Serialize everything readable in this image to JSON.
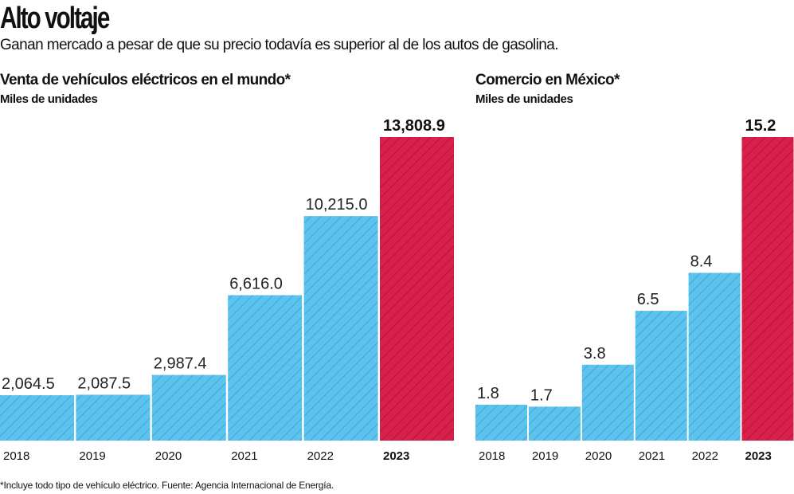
{
  "title": "Alto voltaje",
  "subtitle": "Ganan mercado a pesar de que su precio todavía es superior al de los autos de gasolina.",
  "footnote": "*Incluye todo tipo de vehículo eléctrico. Fuente: Agencia Internacional de Energía.",
  "colors": {
    "normal": "#5cc3ee",
    "highlight": "#d91f4b",
    "hatch_normal": "#3a8fbf",
    "hatch_highlight": "#9a1030"
  },
  "chart_data": [
    {
      "type": "bar",
      "title": "Venta de vehículos eléctricos en el mundo*",
      "ylabel": "Miles de unidades",
      "categories": [
        "2018",
        "2019",
        "2020",
        "2021",
        "2022",
        "2023"
      ],
      "values": [
        2064.5,
        2087.5,
        2987.4,
        6616.0,
        10215.0,
        13808.9
      ],
      "labels": [
        "2,064.5",
        "2,087.5",
        "2,987.4",
        "6,616.0",
        "10,215.0",
        "13,808.9"
      ],
      "highlight": "2023",
      "grid": false,
      "ylim": [
        0,
        13808.9
      ]
    },
    {
      "type": "bar",
      "title": "Comercio en México*",
      "ylabel": "Miles de unidades",
      "categories": [
        "2018",
        "2019",
        "2020",
        "2021",
        "2022",
        "2023"
      ],
      "values": [
        1.8,
        1.7,
        3.8,
        6.5,
        8.4,
        15.2
      ],
      "labels": [
        "1.8",
        "1.7",
        "3.8",
        "6.5",
        "8.4",
        "15.2"
      ],
      "highlight": "2023",
      "grid": false,
      "ylim": [
        0,
        15.2
      ]
    }
  ]
}
